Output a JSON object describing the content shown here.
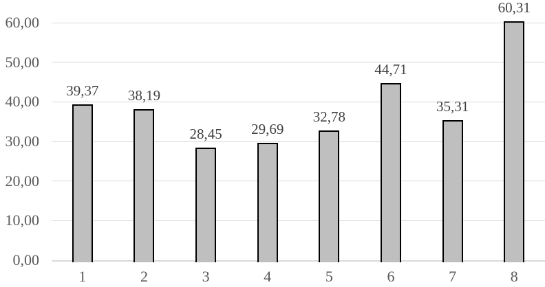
{
  "chart_data": {
    "type": "bar",
    "title": "",
    "xlabel": "",
    "ylabel": "",
    "categories": [
      "1",
      "2",
      "3",
      "4",
      "5",
      "6",
      "7",
      "8"
    ],
    "values": [
      39.37,
      38.19,
      28.45,
      29.69,
      32.78,
      44.71,
      35.31,
      60.31
    ],
    "value_labels": [
      "39,37",
      "38,19",
      "28,45",
      "29,69",
      "32,78",
      "44,71",
      "35,31",
      "60,31"
    ],
    "y_axis": {
      "range": [
        0,
        60
      ],
      "tick_step": 10,
      "decimal_separator": ",",
      "ticks": [
        {
          "value": 0,
          "label": "0,00"
        },
        {
          "value": 10,
          "label": "10,00"
        },
        {
          "value": 20,
          "label": "20,00"
        },
        {
          "value": 30,
          "label": "30,00"
        },
        {
          "value": 40,
          "label": "40,00"
        },
        {
          "value": 50,
          "label": "50,00"
        },
        {
          "value": 60,
          "label": "60,00"
        }
      ]
    },
    "grid": "horizontal",
    "legend": "none",
    "colors": {
      "bar_fill": "#bfbfbf",
      "bar_border": "#000000",
      "gridline": "#d9d9d9",
      "axis_label_text": "#595959",
      "data_label_text": "#404040",
      "background": "#ffffff"
    }
  }
}
